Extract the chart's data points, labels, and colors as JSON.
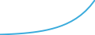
{
  "x": [
    0,
    1,
    2,
    3,
    4,
    5,
    6,
    7,
    8,
    9,
    10,
    11,
    12,
    13,
    14,
    15,
    16,
    17,
    18,
    19,
    20
  ],
  "y": [
    1.0,
    1.05,
    1.12,
    1.2,
    1.3,
    1.42,
    1.57,
    1.75,
    1.97,
    2.23,
    2.55,
    2.93,
    3.38,
    3.92,
    4.57,
    5.35,
    6.28,
    7.4,
    8.75,
    10.4,
    12.4
  ],
  "line_color": "#3aabdc",
  "line_width": 1.4,
  "background_color": "#ffffff"
}
